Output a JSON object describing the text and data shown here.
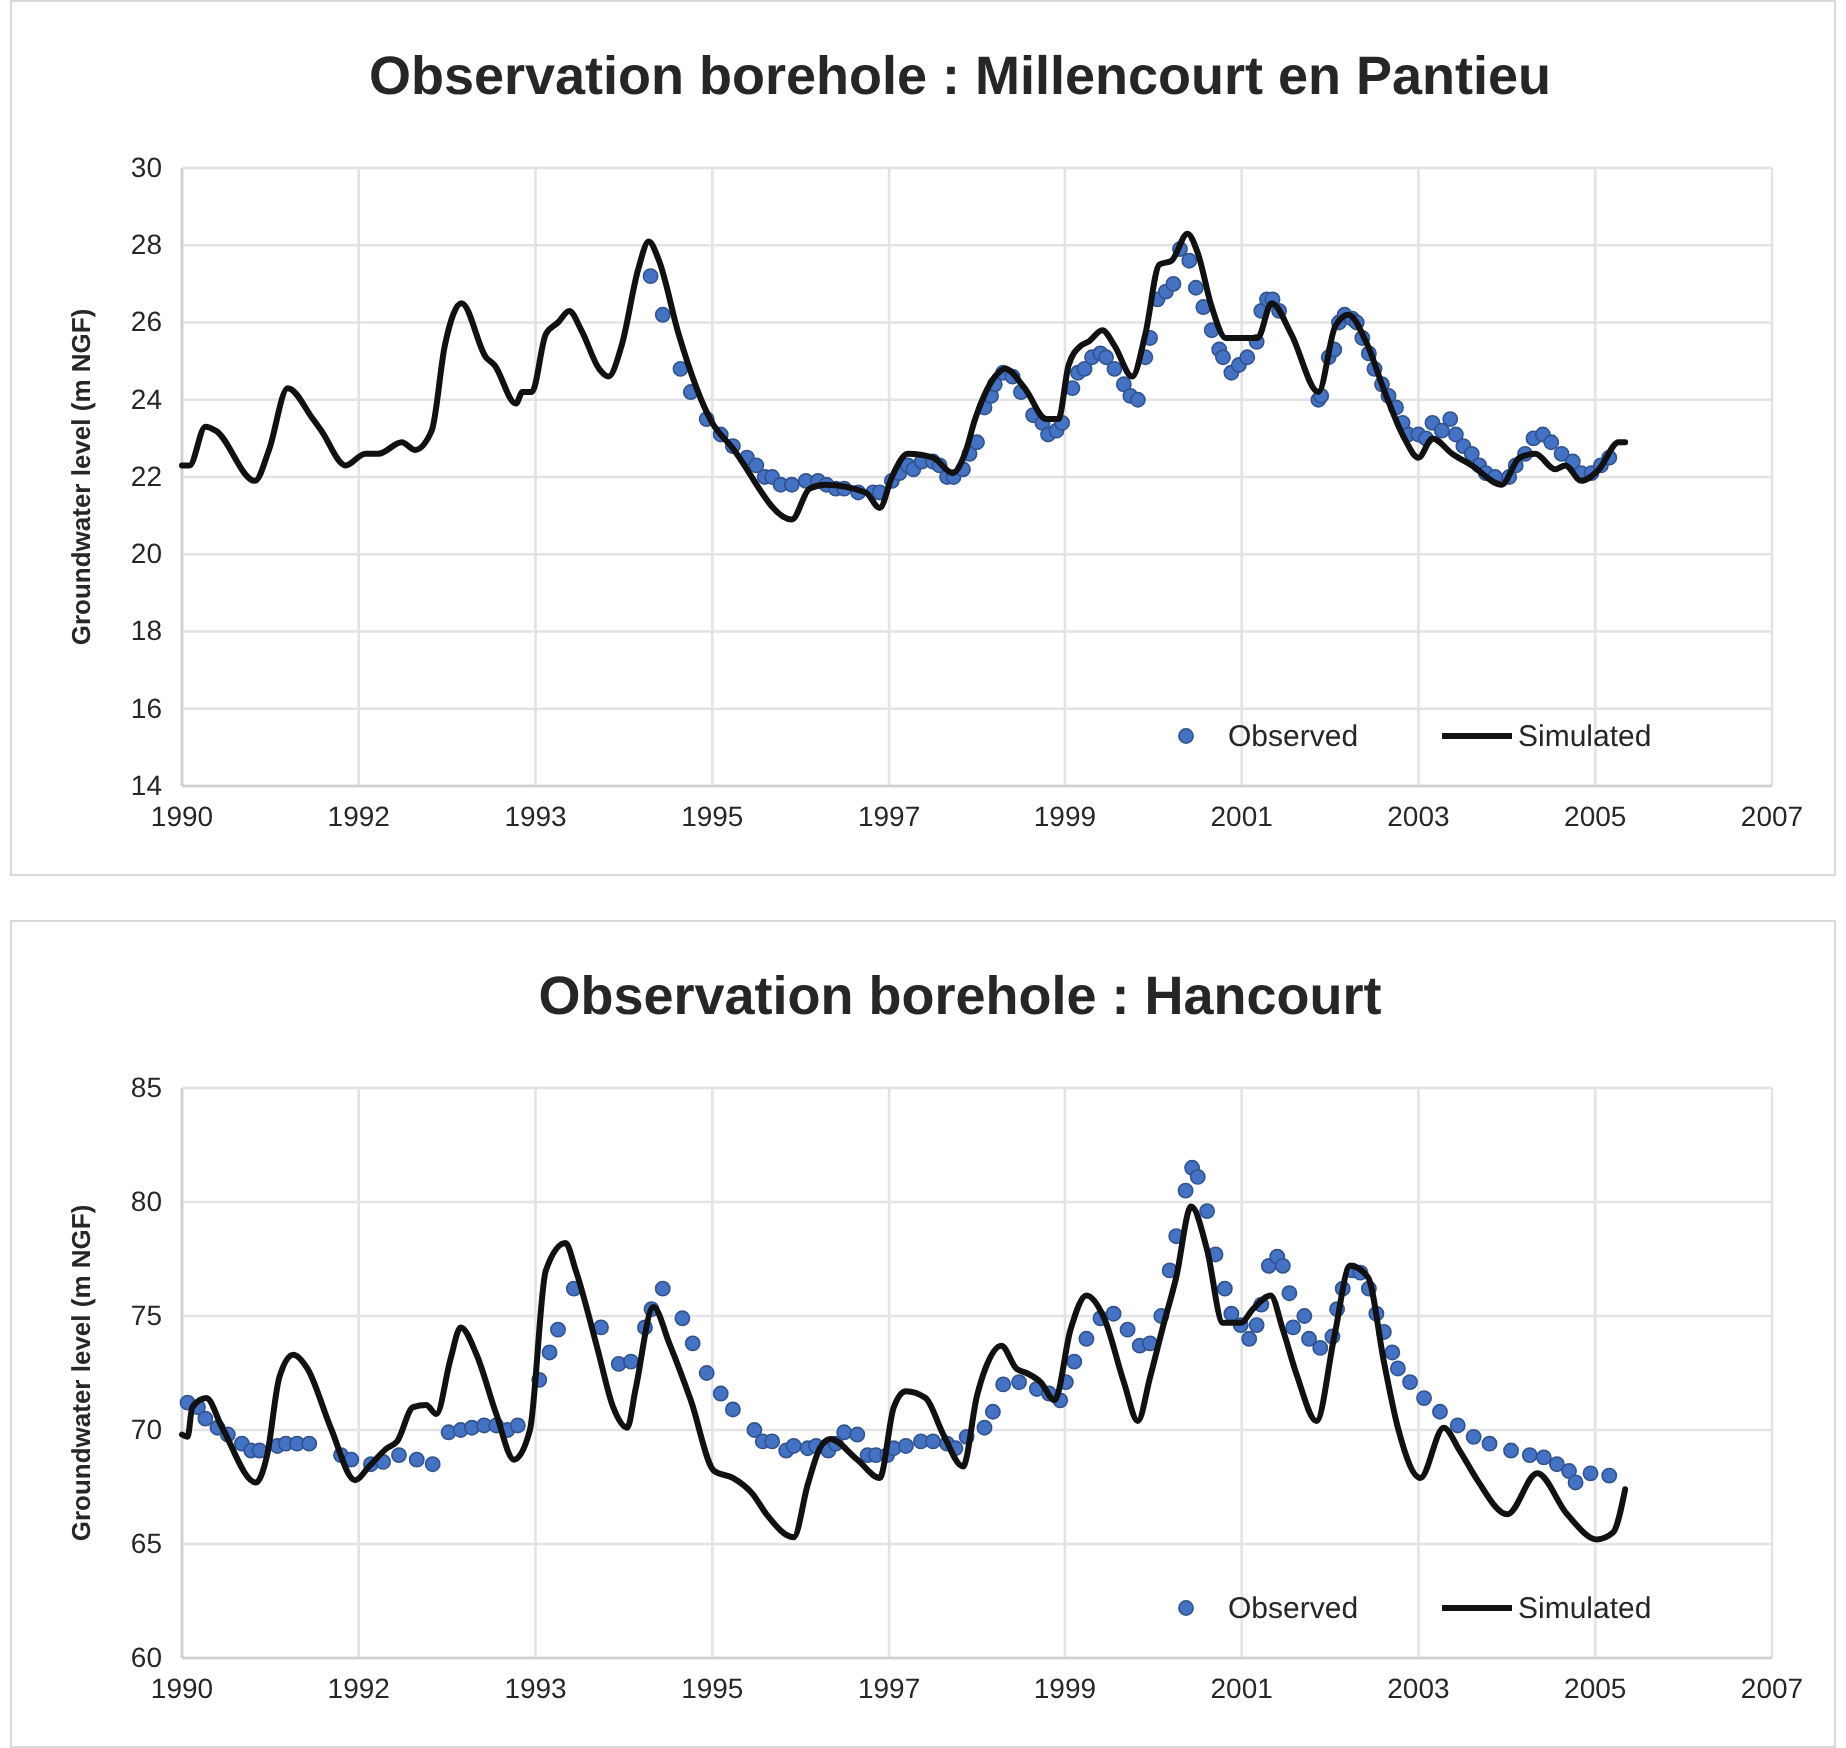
{
  "chart_data": [
    {
      "type": "line",
      "title": "Observation borehole : Millencourt en Pantieu",
      "ylabel": "Groundwater level (m NGF)",
      "xlim": [
        1989.65,
        2006.65
      ],
      "xticks": [
        {
          "value": 1989.65,
          "label": "1990"
        },
        {
          "value": 1991.54,
          "label": "1992"
        },
        {
          "value": 1993.43,
          "label": "1993"
        },
        {
          "value": 1995.32,
          "label": "1995"
        },
        {
          "value": 1997.21,
          "label": "1997"
        },
        {
          "value": 1999.09,
          "label": "1999"
        },
        {
          "value": 2000.98,
          "label": "2001"
        },
        {
          "value": 2002.87,
          "label": "2003"
        },
        {
          "value": 2004.76,
          "label": "2005"
        },
        {
          "value": 2006.65,
          "label": "2007"
        }
      ],
      "ylim": [
        14,
        30
      ],
      "yticks": [
        14,
        16,
        18,
        20,
        22,
        24,
        26,
        28,
        30
      ],
      "grid": true,
      "legend": "bottom right",
      "series": [
        {
          "name": "Observed",
          "type": "scatter",
          "marker": "circle",
          "color": "#4472c4",
          "x": [
            1994.66,
            1994.79,
            1994.98,
            1995.09,
            1995.26,
            1995.41,
            1995.54,
            1995.69,
            1995.79,
            1995.88,
            1995.96,
            1996.05,
            1996.17,
            1996.32,
            1996.45,
            1996.54,
            1996.64,
            1996.73,
            1996.88,
            1997.04,
            1997.11,
            1997.24,
            1997.32,
            1997.41,
            1997.47,
            1997.56,
            1997.68,
            1997.75,
            1997.83,
            1997.9,
            1998.0,
            1998.07,
            1998.15,
            1998.23,
            1998.3,
            1998.34,
            1998.43,
            1998.53,
            1998.62,
            1998.75,
            1998.85,
            1998.91,
            1999.0,
            1999.06,
            1999.17,
            1999.23,
            1999.3,
            1999.38,
            1999.47,
            1999.53,
            1999.62,
            1999.72,
            1999.79,
            1999.87,
            1999.95,
            2000.0,
            2000.08,
            2000.17,
            2000.25,
            2000.32,
            2000.42,
            2000.49,
            2000.57,
            2000.66,
            2000.74,
            2000.78,
            2000.87,
            2000.95,
            2001.04,
            2001.14,
            2001.19,
            2001.25,
            2001.31,
            2001.38,
            2001.8,
            2001.83,
            2001.91,
            2001.97,
            2002.02,
            2002.08,
            2002.16,
            2002.21,
            2002.27,
            2002.34,
            2002.4,
            2002.48,
            2002.55,
            2002.63,
            2002.7,
            2002.76,
            2002.87,
            2002.95,
            2003.02,
            2003.12,
            2003.21,
            2003.27,
            2003.35,
            2003.44,
            2003.52,
            2003.59,
            2003.69,
            2003.84,
            2003.91,
            2004.01,
            2004.1,
            2004.2,
            2004.29,
            2004.4,
            2004.52,
            2004.61,
            2004.72,
            2004.82,
            2004.91
          ],
          "values": [
            27.2,
            26.2,
            24.8,
            24.2,
            23.5,
            23.1,
            22.8,
            22.5,
            22.3,
            22.0,
            22.0,
            21.8,
            21.8,
            21.9,
            21.9,
            21.8,
            21.7,
            21.7,
            21.6,
            21.6,
            21.6,
            21.9,
            22.1,
            22.3,
            22.2,
            22.4,
            22.4,
            22.3,
            22.0,
            22.0,
            22.2,
            22.6,
            22.9,
            23.8,
            24.1,
            24.4,
            24.7,
            24.6,
            24.2,
            23.6,
            23.4,
            23.1,
            23.2,
            23.4,
            24.3,
            24.7,
            24.8,
            25.1,
            25.2,
            25.1,
            24.8,
            24.4,
            24.1,
            24.0,
            25.1,
            25.6,
            26.6,
            26.8,
            27.0,
            27.9,
            27.6,
            26.9,
            26.4,
            25.8,
            25.3,
            25.1,
            24.7,
            24.9,
            25.1,
            25.5,
            26.3,
            26.6,
            26.6,
            26.3,
            24.0,
            24.1,
            25.1,
            25.3,
            26.0,
            26.2,
            26.1,
            26.0,
            25.6,
            25.2,
            24.8,
            24.4,
            24.1,
            23.8,
            23.4,
            23.1,
            23.1,
            23.0,
            23.4,
            23.2,
            23.5,
            23.1,
            22.8,
            22.6,
            22.3,
            22.1,
            22.0,
            22.0,
            22.3,
            22.6,
            23.0,
            23.1,
            22.9,
            22.6,
            22.4,
            22.1,
            22.1,
            22.3,
            22.5
          ]
        },
        {
          "name": "Simulated",
          "type": "line",
          "color": "#111111",
          "x": [
            1989.65,
            1989.73,
            1989.9,
            1990.01,
            1990.43,
            1990.58,
            1990.78,
            1991.05,
            1991.14,
            1991.4,
            1991.61,
            1991.75,
            1992.0,
            1992.14,
            1992.32,
            1992.46,
            1992.64,
            1992.9,
            1992.99,
            1993.22,
            1993.29,
            1993.39,
            1993.54,
            1993.67,
            1993.79,
            1993.92,
            1994.11,
            1994.21,
            1994.35,
            1994.53,
            1994.64,
            1994.75,
            1994.96,
            1995.32,
            1995.52,
            1996.17,
            1996.36,
            1996.53,
            1996.96,
            1997.11,
            1997.24,
            1997.41,
            1997.68,
            1997.89,
            1998.02,
            1998.13,
            1998.38,
            1998.45,
            1998.66,
            1998.89,
            1999.02,
            1999.13,
            1999.26,
            1999.34,
            1999.49,
            1999.62,
            1999.81,
            1999.95,
            2000.1,
            2000.23,
            2000.4,
            2000.51,
            2000.66,
            2000.81,
            2001.06,
            2001.15,
            2001.3,
            2001.51,
            2001.8,
            2001.98,
            2002.12,
            2002.31,
            2002.51,
            2002.72,
            2002.87,
            2003.02,
            2003.23,
            2003.44,
            2003.76,
            2003.95,
            2004.12,
            2004.33,
            2004.44,
            2004.61,
            2004.8,
            2005.01,
            2005.08
          ],
          "values": [
            22.3,
            22.3,
            23.3,
            23.2,
            21.9,
            22.7,
            24.3,
            23.5,
            23.2,
            22.3,
            22.6,
            22.6,
            22.9,
            22.7,
            23.2,
            25.4,
            26.5,
            25.1,
            24.9,
            23.9,
            24.2,
            24.2,
            25.7,
            26.0,
            26.3,
            25.8,
            24.8,
            24.6,
            25.4,
            27.4,
            28.1,
            27.6,
            25.7,
            23.4,
            22.8,
            20.9,
            21.7,
            21.8,
            21.6,
            21.2,
            22.0,
            22.6,
            22.5,
            22.1,
            22.6,
            23.5,
            24.7,
            24.8,
            24.3,
            23.5,
            23.5,
            24.9,
            25.4,
            25.5,
            25.8,
            25.4,
            24.6,
            25.7,
            27.5,
            27.6,
            28.3,
            27.8,
            26.4,
            25.6,
            25.6,
            25.6,
            26.5,
            25.7,
            24.2,
            25.9,
            26.2,
            25.5,
            24.2,
            23.0,
            22.5,
            23.0,
            22.6,
            22.3,
            21.8,
            22.5,
            22.6,
            22.2,
            22.3,
            21.9,
            22.2,
            22.9,
            22.9
          ]
        }
      ]
    },
    {
      "type": "line",
      "title": "Observation borehole : Hancourt",
      "ylabel": "Groundwater level (m NGF)",
      "xlim": [
        1989.65,
        2006.65
      ],
      "xticks": [
        {
          "value": 1989.65,
          "label": "1990"
        },
        {
          "value": 1991.54,
          "label": "1992"
        },
        {
          "value": 1993.43,
          "label": "1993"
        },
        {
          "value": 1995.32,
          "label": "1995"
        },
        {
          "value": 1997.21,
          "label": "1997"
        },
        {
          "value": 1999.09,
          "label": "1999"
        },
        {
          "value": 2000.98,
          "label": "2001"
        },
        {
          "value": 2002.87,
          "label": "2003"
        },
        {
          "value": 2004.76,
          "label": "2005"
        },
        {
          "value": 2006.65,
          "label": "2007"
        }
      ],
      "ylim": [
        60,
        85
      ],
      "yticks": [
        60,
        65,
        70,
        75,
        80,
        85
      ],
      "grid": true,
      "legend": "bottom right",
      "series": [
        {
          "name": "Observed",
          "type": "scatter",
          "marker": "circle",
          "color": "#4472c4",
          "x": [
            1989.71,
            1989.82,
            1989.9,
            1990.03,
            1990.14,
            1990.29,
            1990.39,
            1990.48,
            1990.67,
            1990.76,
            1990.88,
            1991.01,
            1991.35,
            1991.46,
            1991.67,
            1991.8,
            1991.97,
            1992.16,
            1992.33,
            1992.5,
            1992.63,
            1992.75,
            1992.88,
            1993.01,
            1993.13,
            1993.24,
            1993.47,
            1993.58,
            1993.67,
            1993.84,
            1994.13,
            1994.32,
            1994.45,
            1994.6,
            1994.67,
            1994.79,
            1995.0,
            1995.11,
            1995.26,
            1995.41,
            1995.54,
            1995.77,
            1995.86,
            1995.96,
            1996.11,
            1996.19,
            1996.34,
            1996.43,
            1996.56,
            1996.64,
            1996.73,
            1996.87,
            1996.98,
            1997.07,
            1997.19,
            1997.26,
            1997.39,
            1997.55,
            1997.68,
            1997.83,
            1997.92,
            1998.04,
            1998.23,
            1998.32,
            1998.43,
            1998.6,
            1998.79,
            1998.92,
            1999.04,
            1999.1,
            1999.19,
            1999.32,
            1999.47,
            1999.61,
            1999.76,
            1999.89,
            2000.0,
            2000.12,
            2000.21,
            2000.28,
            2000.38,
            2000.45,
            2000.51,
            2000.61,
            2000.7,
            2000.8,
            2000.87,
            2000.97,
            2001.06,
            2001.14,
            2001.19,
            2001.27,
            2001.36,
            2001.42,
            2001.49,
            2001.53,
            2001.65,
            2001.7,
            2001.82,
            2001.95,
            2002.0,
            2002.06,
            2002.16,
            2002.25,
            2002.34,
            2002.42,
            2002.5,
            2002.59,
            2002.65,
            2002.78,
            2002.93,
            2003.1,
            2003.29,
            2003.46,
            2003.63,
            2003.86,
            2004.06,
            2004.21,
            2004.35,
            2004.48,
            2004.55,
            2004.71,
            2004.91
          ],
          "values": [
            71.2,
            71.0,
            70.5,
            70.1,
            69.8,
            69.4,
            69.1,
            69.1,
            69.3,
            69.4,
            69.4,
            69.4,
            68.9,
            68.7,
            68.5,
            68.6,
            68.9,
            68.7,
            68.5,
            69.9,
            70.0,
            70.1,
            70.2,
            70.2,
            70.0,
            70.2,
            72.2,
            73.4,
            74.4,
            76.2,
            74.5,
            72.9,
            73.0,
            74.5,
            75.3,
            76.2,
            74.9,
            73.8,
            72.5,
            71.6,
            70.9,
            70.0,
            69.5,
            69.5,
            69.1,
            69.3,
            69.2,
            69.3,
            69.1,
            69.4,
            69.9,
            69.8,
            68.9,
            68.9,
            68.9,
            69.2,
            69.3,
            69.5,
            69.5,
            69.4,
            69.2,
            69.7,
            70.1,
            70.8,
            72.0,
            72.1,
            71.8,
            71.6,
            71.3,
            72.1,
            73.0,
            74.0,
            74.9,
            75.1,
            74.4,
            73.7,
            73.8,
            75.0,
            77.0,
            78.5,
            80.5,
            81.5,
            81.1,
            79.6,
            77.7,
            76.2,
            75.1,
            74.6,
            74.0,
            74.6,
            75.5,
            77.2,
            77.6,
            77.2,
            76.0,
            74.5,
            75.0,
            74.0,
            73.6,
            74.1,
            75.3,
            76.2,
            77.0,
            76.9,
            76.2,
            75.1,
            74.3,
            73.4,
            72.7,
            72.1,
            71.4,
            70.8,
            70.2,
            69.7,
            69.4,
            69.1,
            68.9,
            68.8,
            68.5,
            68.2,
            67.7,
            68.1,
            68.0
          ]
        },
        {
          "name": "Simulated",
          "type": "line",
          "color": "#111111",
          "x": [
            1989.65,
            1989.71,
            1989.76,
            1989.91,
            1990.08,
            1990.44,
            1990.56,
            1990.69,
            1990.84,
            1990.99,
            1991.24,
            1991.5,
            1991.65,
            1991.84,
            1991.95,
            1992.12,
            1992.26,
            1992.37,
            1992.52,
            1992.63,
            1992.8,
            1993.01,
            1993.2,
            1993.37,
            1993.54,
            1993.75,
            1993.86,
            1994.09,
            1994.26,
            1994.41,
            1994.5,
            1994.69,
            1994.86,
            1995.09,
            1995.34,
            1995.54,
            1995.75,
            1995.9,
            1996.19,
            1996.34,
            1996.47,
            1996.58,
            1996.87,
            1997.11,
            1997.26,
            1997.39,
            1997.6,
            1997.79,
            1998.0,
            1998.15,
            1998.24,
            1998.41,
            1998.57,
            1998.68,
            1998.83,
            1998.98,
            1999.15,
            1999.32,
            1999.51,
            1999.72,
            1999.87,
            2000.0,
            2000.13,
            2000.28,
            2000.44,
            2000.61,
            2000.78,
            2000.97,
            2001.1,
            2001.29,
            2001.42,
            2001.57,
            2001.78,
            2001.97,
            2002.14,
            2002.33,
            2002.5,
            2002.65,
            2002.89,
            2003.14,
            2003.31,
            2003.5,
            2003.82,
            2004.14,
            2004.46,
            2004.78,
            2004.95,
            2005.08
          ],
          "values": [
            69.8,
            69.7,
            71.0,
            71.4,
            70.1,
            67.7,
            68.9,
            72.3,
            73.3,
            72.7,
            70.1,
            67.8,
            68.4,
            69.2,
            69.5,
            71.0,
            71.1,
            70.7,
            73.1,
            74.5,
            73.3,
            70.7,
            68.7,
            70.0,
            77.0,
            78.2,
            77.0,
            73.6,
            71.0,
            70.1,
            71.8,
            75.4,
            73.8,
            71.3,
            68.2,
            67.9,
            67.2,
            66.3,
            65.3,
            67.6,
            69.2,
            69.6,
            68.7,
            67.9,
            71.0,
            71.7,
            71.4,
            69.8,
            68.4,
            71.5,
            72.7,
            73.7,
            72.7,
            72.5,
            72.1,
            71.3,
            74.4,
            75.9,
            74.9,
            72.1,
            70.4,
            72.3,
            74.4,
            76.7,
            79.8,
            77.9,
            74.7,
            74.7,
            75.3,
            75.9,
            74.4,
            72.4,
            70.4,
            74.1,
            77.2,
            76.7,
            73.0,
            70.1,
            67.9,
            70.1,
            69.1,
            67.8,
            66.3,
            68.1,
            66.3,
            65.2,
            65.5,
            67.4
          ]
        }
      ]
    }
  ]
}
